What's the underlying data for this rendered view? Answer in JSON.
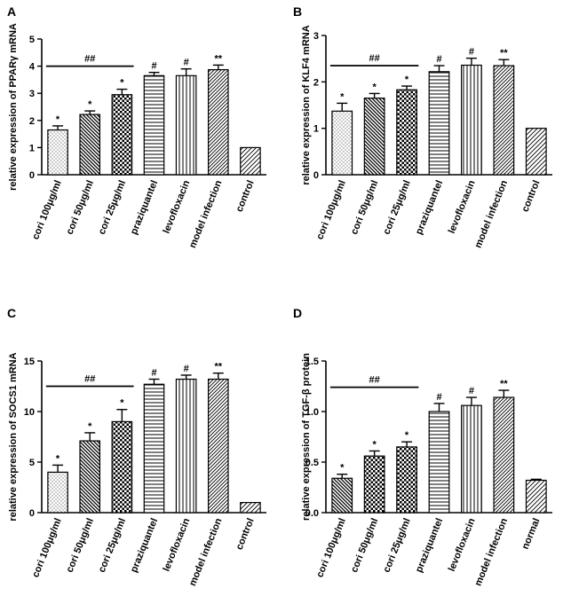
{
  "chart_data": [
    {
      "type": "bar",
      "panel_label": "A",
      "ylabel": "relative expression of PPARγ mRNA",
      "ylim": [
        0,
        5
      ],
      "yticks": [
        "0",
        "1",
        "2",
        "3",
        "4",
        "5"
      ],
      "categories": [
        "cori 100μg/ml",
        "cori 50μg/ml",
        "cori 25μg/ml",
        "praziquantel",
        "levofloxacin",
        "model infection",
        "control"
      ],
      "values": [
        1.65,
        2.22,
        2.95,
        3.65,
        3.65,
        3.87,
        1.0
      ],
      "errors": [
        0.15,
        0.13,
        0.2,
        0.12,
        0.25,
        0.17,
        0.0
      ],
      "significance": [
        "*",
        "*",
        "*",
        "#",
        "#",
        "**",
        ""
      ],
      "group_bracket": {
        "label": "##",
        "from": 0,
        "to": 2,
        "y": 4.0
      },
      "patterns": [
        "dots",
        "hatch-back",
        "checker",
        "horizontal",
        "vertical",
        "hatch-fwd-dense",
        "hatch-fwd"
      ]
    },
    {
      "type": "bar",
      "panel_label": "B",
      "ylabel": "relative expression of KLF4 mRNA",
      "ylim": [
        0,
        3
      ],
      "yticks": [
        "0",
        "1",
        "2",
        "3"
      ],
      "categories": [
        "cori 100μg/ml",
        "cori 50μg/ml",
        "cori 25μg/ml",
        "praziquantel",
        "levofloxacin",
        "model infection",
        "control"
      ],
      "values": [
        1.37,
        1.65,
        1.83,
        2.22,
        2.36,
        2.35,
        1.0
      ],
      "errors": [
        0.17,
        0.1,
        0.08,
        0.13,
        0.15,
        0.13,
        0.0
      ],
      "significance": [
        "*",
        "*",
        "*",
        "#",
        "#",
        "**",
        ""
      ],
      "group_bracket": {
        "label": "##",
        "from": 0,
        "to": 2,
        "y": 2.35
      },
      "patterns": [
        "dots",
        "hatch-back",
        "checker",
        "horizontal",
        "vertical",
        "hatch-fwd-dense",
        "hatch-fwd"
      ]
    },
    {
      "type": "bar",
      "panel_label": "C",
      "ylabel": "relative expression of SOCS1 mRNA",
      "ylim": [
        0,
        15
      ],
      "yticks": [
        "0",
        "5",
        "10",
        "15"
      ],
      "categories": [
        "cori 100μg/ml",
        "cori 50μg/ml",
        "cori 25μg/ml",
        "praziquantel",
        "levofloxacin",
        "model infection",
        "control"
      ],
      "values": [
        4.0,
        7.1,
        9.0,
        12.7,
        13.2,
        13.2,
        1.0
      ],
      "errors": [
        0.7,
        0.8,
        1.2,
        0.5,
        0.4,
        0.6,
        0.0
      ],
      "significance": [
        "*",
        "*",
        "*",
        "#",
        "#",
        "**",
        ""
      ],
      "group_bracket": {
        "label": "##",
        "from": 0,
        "to": 2,
        "y": 12.5
      },
      "patterns": [
        "dots",
        "hatch-back",
        "checker",
        "horizontal",
        "vertical",
        "hatch-fwd-dense",
        "hatch-fwd"
      ]
    },
    {
      "type": "bar",
      "panel_label": "D",
      "ylabel": "relative expression of TGF-β protein",
      "ylim": [
        0,
        1.5
      ],
      "yticks": [
        "0.0",
        "0.5",
        "1.0",
        "1.5"
      ],
      "categories": [
        "cori 100μg/ml",
        "cori 50μg/ml",
        "cori 25μg/ml",
        "praziquantel",
        "levofloxacin",
        "model infection",
        "normal"
      ],
      "values": [
        0.34,
        0.56,
        0.65,
        1.0,
        1.06,
        1.14,
        0.32
      ],
      "errors": [
        0.04,
        0.05,
        0.05,
        0.08,
        0.08,
        0.07,
        0.01
      ],
      "significance": [
        "*",
        "*",
        "*",
        "#",
        "#",
        "**",
        ""
      ],
      "group_bracket": {
        "label": "##",
        "from": 0,
        "to": 2,
        "y": 1.24
      },
      "patterns": [
        "hatch-back",
        "checker",
        "checker",
        "horizontal",
        "vertical",
        "hatch-fwd-dense",
        "hatch-fwd"
      ]
    }
  ]
}
